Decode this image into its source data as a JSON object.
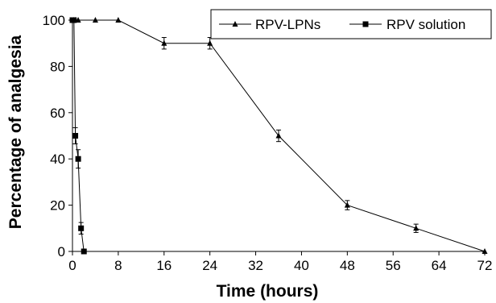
{
  "chart_data": {
    "type": "line",
    "xlabel": "Time (hours)",
    "ylabel": "Percentage of analgesia",
    "xlim": [
      0,
      72
    ],
    "ylim": [
      0,
      100
    ],
    "xticks": [
      "0",
      "8",
      "16",
      "24",
      "32",
      "40",
      "48",
      "56",
      "64",
      "72"
    ],
    "yticks": [
      "0",
      "20",
      "40",
      "60",
      "80",
      "100"
    ],
    "grid": false,
    "legend_position": "top-right",
    "series": [
      {
        "name": "RPV-LPNs",
        "marker": "triangle",
        "color": "#000000",
        "x": [
          0.25,
          0.5,
          1,
          4,
          8,
          16,
          24,
          36,
          48,
          60,
          72
        ],
        "y": [
          100,
          100,
          100,
          100,
          100,
          90,
          90,
          50,
          20,
          10,
          0
        ],
        "error": [
          0,
          0,
          0,
          0,
          0,
          2.5,
          2.5,
          2.5,
          2,
          1.8,
          0
        ]
      },
      {
        "name": "RPV solution",
        "marker": "square",
        "color": "#000000",
        "x": [
          0,
          0.25,
          0.5,
          1,
          1.5,
          2
        ],
        "y": [
          100,
          100,
          50,
          40,
          10,
          0
        ],
        "error": [
          0,
          0,
          3.5,
          4,
          2.5,
          0
        ]
      }
    ]
  }
}
